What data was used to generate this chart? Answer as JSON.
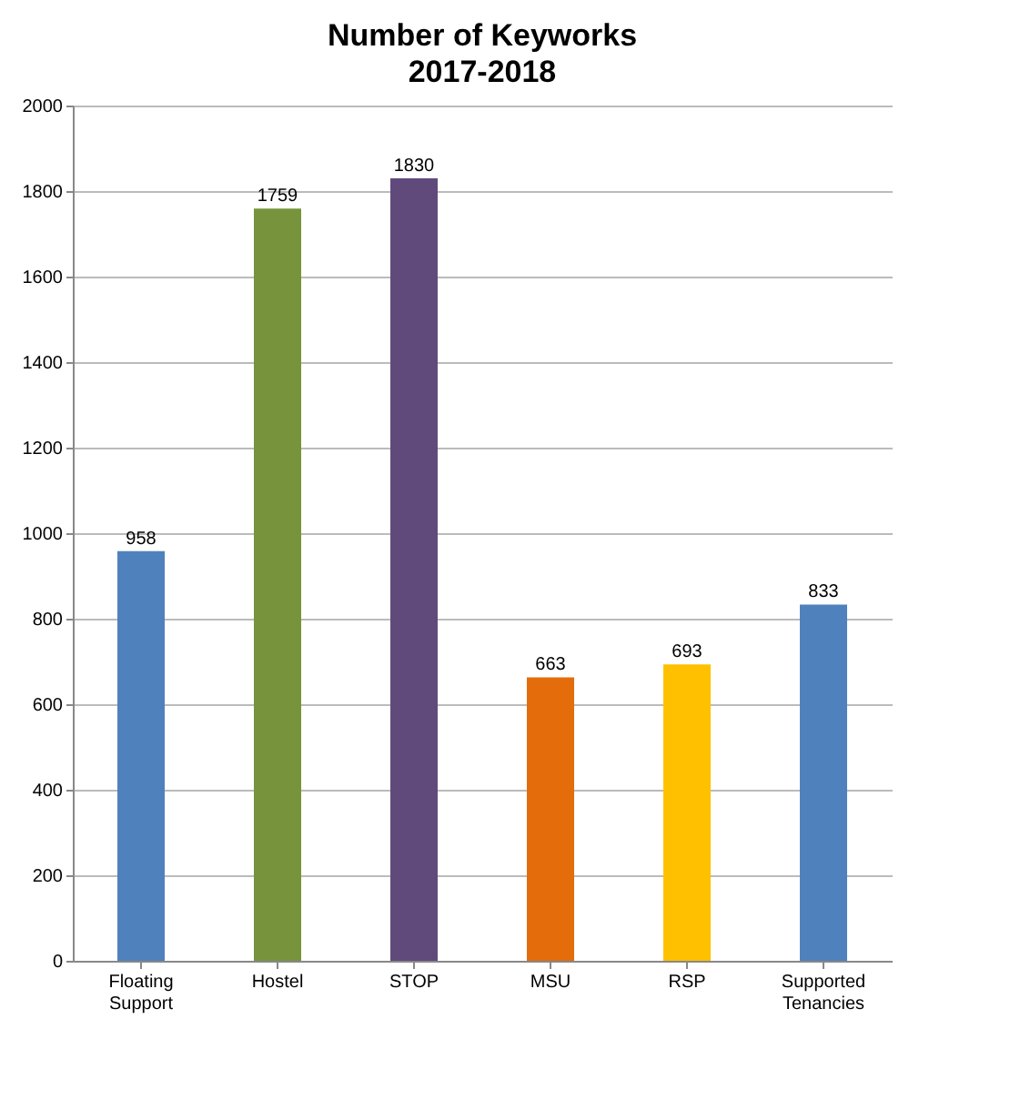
{
  "chart_data": {
    "type": "bar",
    "title": "Number of Keyworks",
    "subtitle": "2017-2018",
    "categories": [
      "Floating Support",
      "Hostel",
      "STOP",
      "MSU",
      "RSP",
      "Supported Tenancies"
    ],
    "values": [
      958,
      1759,
      1830,
      663,
      693,
      833
    ],
    "colors": [
      "#4f81bd",
      "#77933c",
      "#604a7b",
      "#e46c0a",
      "#ffc000",
      "#4f81bd"
    ],
    "ylim": [
      0,
      2000
    ],
    "yticks": [
      0,
      200,
      400,
      600,
      800,
      1000,
      1200,
      1400,
      1600,
      1800,
      2000
    ],
    "grid": "y",
    "data_labels": true
  }
}
